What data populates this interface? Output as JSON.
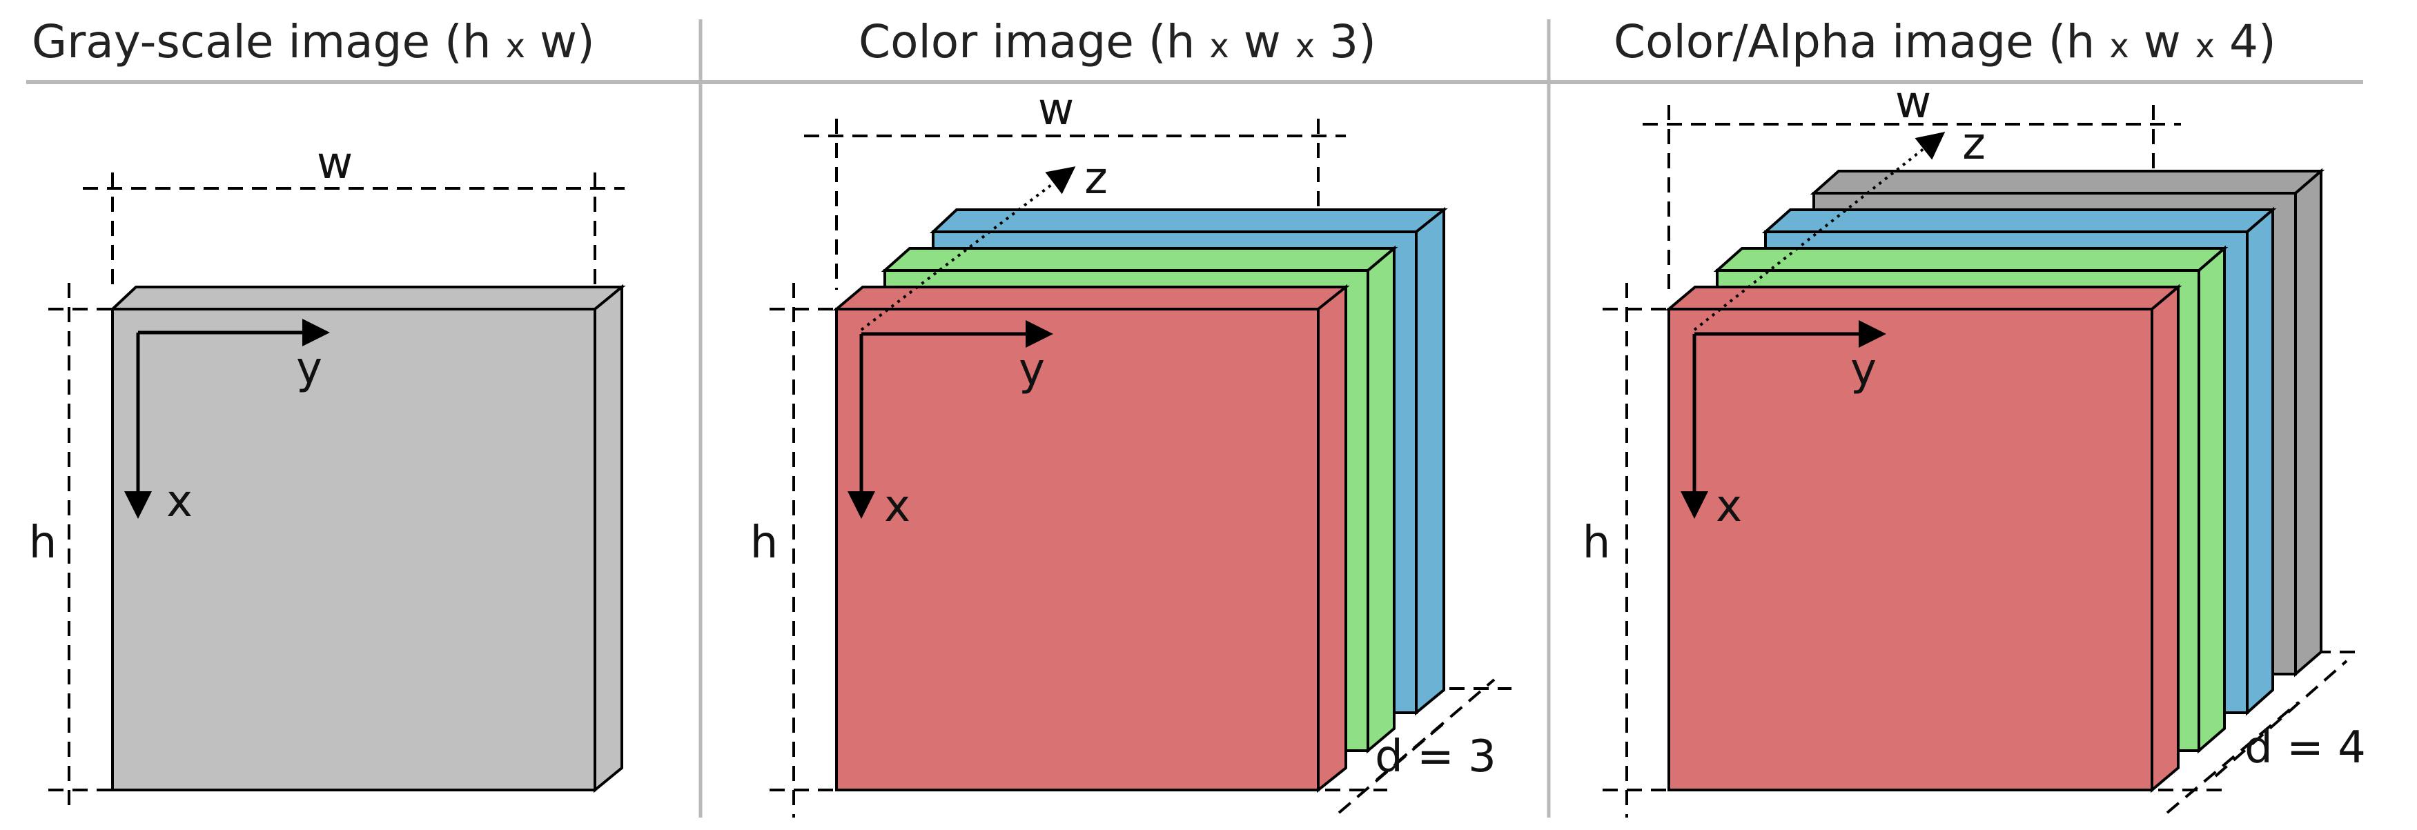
{
  "panels": [
    {
      "title_pre": "Gray-scale image (h ",
      "title_x1": "x",
      "title_mid": " w)",
      "labels": {
        "w": "w",
        "h": "h",
        "x": "x",
        "y": "y"
      }
    },
    {
      "title_pre": "Color image (h ",
      "title_x1": "x",
      "title_mid": " w ",
      "title_x2": "x",
      "title_post": " 3)",
      "labels": {
        "w": "w",
        "h": "h",
        "x": "x",
        "y": "y",
        "z": "z",
        "d": "d = 3"
      }
    },
    {
      "title_pre": "Color/Alpha image (h ",
      "title_x1": "x",
      "title_mid": " w ",
      "title_x2": "x",
      "title_post": " 4)",
      "labels": {
        "w": "w",
        "h": "h",
        "x": "x",
        "y": "y",
        "z": "z",
        "d": "d = 4"
      }
    }
  ],
  "colors": {
    "gray": "#c0c0c0",
    "red": "#d97272",
    "green": "#8fdf84",
    "blue": "#6cb2d4",
    "alpha": "#a2a2a2"
  }
}
